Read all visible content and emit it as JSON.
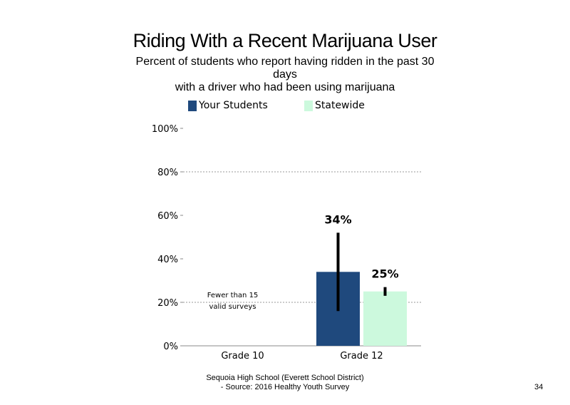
{
  "title": "Riding With a Recent Marijuana User",
  "subtitle_lines": [
    "Percent of students who report having ridden in the past 30",
    "days",
    "with a driver who had been using marijuana"
  ],
  "footer": {
    "line1": "Sequoia High School (Everett School District)",
    "line2": "- Source: 2016 Healthy Youth Survey"
  },
  "page_number": "34",
  "colors": {
    "your_students": "#1f497d",
    "statewide": "#ccf9dd",
    "error_bar": "#000000",
    "gridline": "#999999",
    "axis": "#888888"
  },
  "chart_data": {
    "type": "bar",
    "categories": [
      "Grade 10",
      "Grade 12"
    ],
    "series": [
      {
        "name": "Your Students",
        "color": "#1f497d",
        "values": [
          null,
          34
        ],
        "value_labels": [
          "",
          "34%"
        ],
        "error_low": [
          null,
          16
        ],
        "error_high": [
          null,
          52
        ]
      },
      {
        "name": "Statewide",
        "color": "#ccf9dd",
        "values": [
          null,
          25
        ],
        "value_labels": [
          "",
          "25%"
        ],
        "error_low": [
          null,
          23
        ],
        "error_high": [
          null,
          27
        ]
      }
    ],
    "ylim": [
      0,
      100
    ],
    "yticks": [
      0,
      20,
      40,
      60,
      80,
      100
    ],
    "ytick_labels": [
      "0%",
      "20%",
      "40%",
      "60%",
      "80%",
      "100%"
    ],
    "gridlines": [
      20,
      80
    ],
    "legend_position": "top",
    "annotations": [
      {
        "category": "Grade 10",
        "lines": [
          "Fewer than 15",
          "valid surveys"
        ]
      }
    ]
  }
}
